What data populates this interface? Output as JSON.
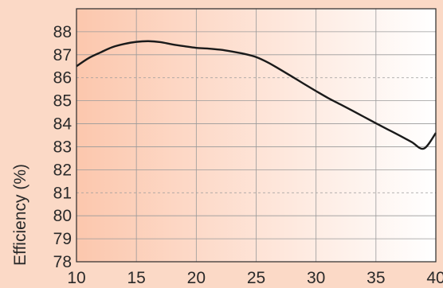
{
  "chart_data": {
    "type": "line",
    "title": "",
    "xlabel": "",
    "ylabel": "Efficiency (%)",
    "xlim": [
      10,
      40
    ],
    "ylim": [
      78,
      89
    ],
    "xticks": [
      10,
      15,
      20,
      25,
      30,
      35,
      40
    ],
    "yticks": [
      78,
      79,
      80,
      81,
      82,
      83,
      84,
      85,
      86,
      87,
      88
    ],
    "grid": true,
    "dashed_gridlines_y": [
      81,
      86
    ],
    "series": [
      {
        "color": "#1a1a1a",
        "x": [
          10,
          11,
          12,
          13,
          14,
          15,
          16,
          17,
          18,
          19,
          20,
          21,
          22,
          23,
          24,
          25,
          26,
          27,
          28,
          29,
          30,
          31,
          32,
          33,
          34,
          35,
          36,
          37,
          38,
          39,
          40
        ],
        "y": [
          86.5,
          86.85,
          87.1,
          87.33,
          87.47,
          87.56,
          87.59,
          87.55,
          87.45,
          87.37,
          87.3,
          87.27,
          87.22,
          87.14,
          87.04,
          86.9,
          86.66,
          86.36,
          86.05,
          85.73,
          85.42,
          85.12,
          84.85,
          84.58,
          84.3,
          84.02,
          83.75,
          83.48,
          83.2,
          82.92,
          83.6
        ]
      }
    ]
  },
  "colors": {
    "background": "#fbd9c6",
    "plot_gradient_left": "#fcc7ad",
    "plot_gradient_right": "#ffffff",
    "grid": "#9a9a9a",
    "line": "#1a1a1a"
  }
}
